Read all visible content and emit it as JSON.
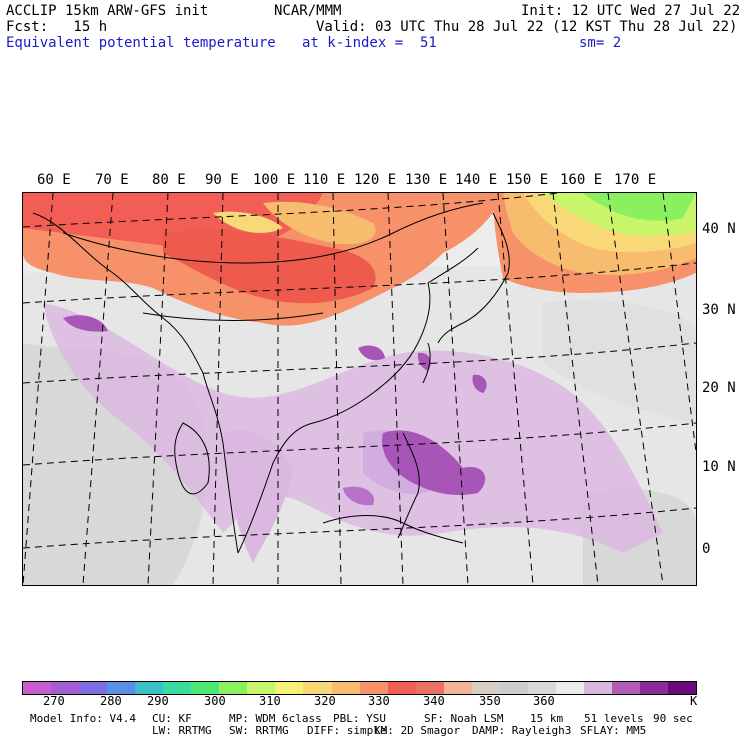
{
  "header": {
    "title": "ACCLIP 15km ARW-GFS init",
    "center": "NCAR/MMM",
    "init": "Init: 12 UTC Wed 27 Jul 22",
    "fcst": "Fcst:   15 h",
    "valid": "Valid: 03 UTC Thu 28 Jul 22 (12 KST Thu 28 Jul 22)",
    "field": "Equivalent potential temperature",
    "level": "at k-index =  51",
    "smooth": "sm= 2"
  },
  "map": {
    "lon_labels": [
      "60 E",
      "70 E",
      "80 E",
      "90 E",
      "100 E",
      "110 E",
      "120 E",
      "130 E",
      "140 E",
      "150 E",
      "160 E",
      "170 E"
    ],
    "lat_labels": [
      "40 N",
      "30 N",
      "20 N",
      "10 N",
      "0"
    ]
  },
  "colorbar": {
    "colors": [
      "#c75ecf",
      "#a35ed6",
      "#7d6ee0",
      "#5b8fe6",
      "#3bbfc8",
      "#39dca0",
      "#4ee879",
      "#8af060",
      "#c8f56a",
      "#f7f07a",
      "#f8d877",
      "#f8bc6e",
      "#f6916a",
      "#f25e55",
      "#ec7060",
      "#f2b59a",
      "#dcccc2",
      "#cccccc",
      "#d8d8d8",
      "#ebebeb",
      "#dab8e0",
      "#b05cb8",
      "#8c2a9a",
      "#6a0a7a"
    ],
    "labels": [
      "270",
      "280",
      "290",
      "300",
      "310",
      "320",
      "330",
      "340",
      "350",
      "360"
    ],
    "unit": "K"
  },
  "footer": {
    "line1": [
      "Model Info: V4.4",
      "CU: KF",
      "MP: WDM 6class",
      "PBL: YSU",
      "SF: Noah LSM",
      "15 km",
      "51 levels",
      "90 sec"
    ],
    "line2": [
      "LW: RRTMG",
      "SW: RRTMG",
      "DIFF: simple",
      "KM: 2D Smagor",
      "DAMP: Rayleigh3",
      "SFLAY: MM5"
    ]
  }
}
